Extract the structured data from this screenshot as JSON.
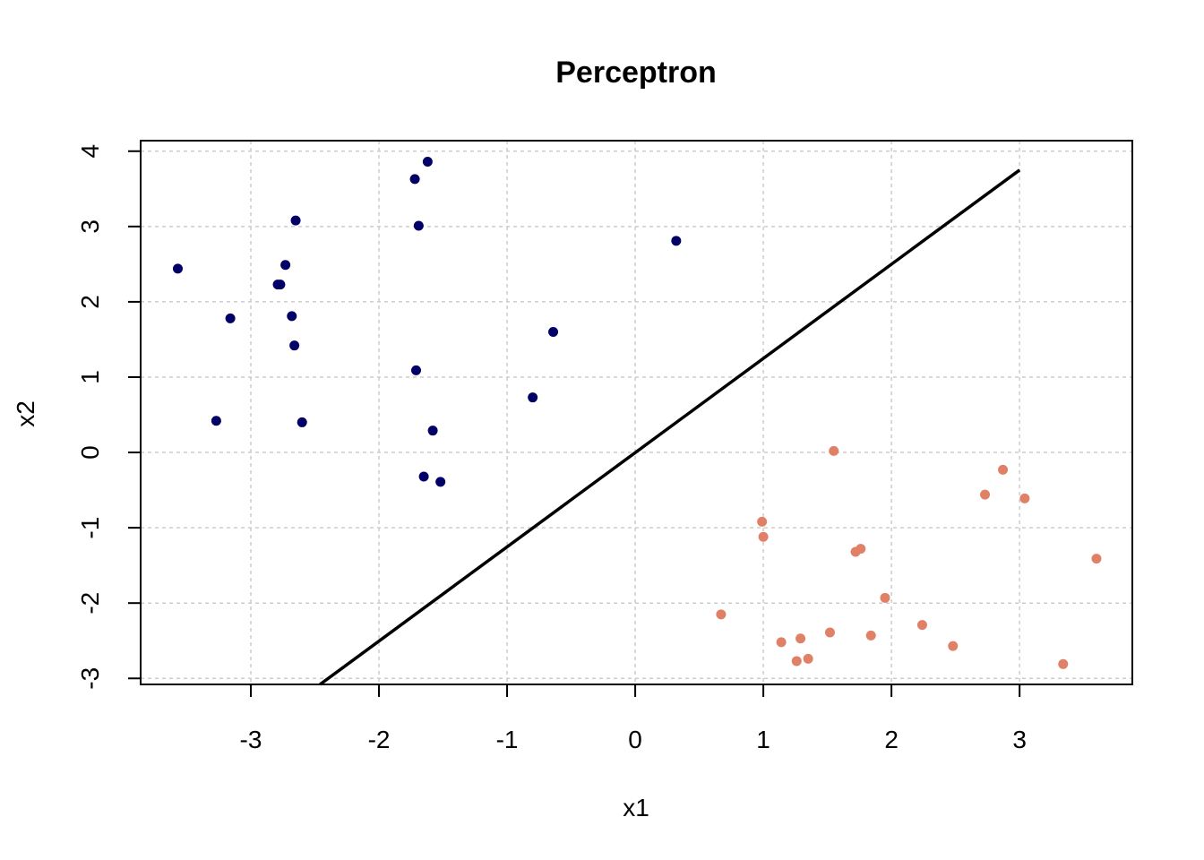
{
  "chart_data": {
    "type": "scatter",
    "title": "Perceptron",
    "xlabel": "x1",
    "ylabel": "x2",
    "xlim": [
      -3.86,
      3.88
    ],
    "ylim": [
      -3.08,
      4.14
    ],
    "xticks": [
      -3,
      -2,
      -1,
      0,
      1,
      2,
      3
    ],
    "yticks": [
      -3,
      -2,
      -1,
      0,
      1,
      2,
      3,
      4
    ],
    "xtick_labels": [
      "-3",
      "-2",
      "-1",
      "0",
      "1",
      "2",
      "3"
    ],
    "ytick_labels": [
      "-3",
      "-2",
      "-1",
      "0",
      "1",
      "2",
      "3",
      "4"
    ],
    "grid": true,
    "series": [
      {
        "color": "#000066",
        "points": [
          [
            -3.57,
            2.44
          ],
          [
            -3.27,
            0.42
          ],
          [
            -3.16,
            1.78
          ],
          [
            -2.79,
            2.23
          ],
          [
            -2.77,
            2.23
          ],
          [
            -2.73,
            2.49
          ],
          [
            -2.68,
            1.81
          ],
          [
            -2.66,
            1.42
          ],
          [
            -2.65,
            3.08
          ],
          [
            -2.6,
            0.4
          ],
          [
            -1.72,
            3.63
          ],
          [
            -1.71,
            1.09
          ],
          [
            -1.69,
            3.01
          ],
          [
            -1.65,
            -0.32
          ],
          [
            -1.62,
            3.86
          ],
          [
            -1.58,
            0.29
          ],
          [
            -1.52,
            -0.39
          ],
          [
            -0.8,
            0.73
          ],
          [
            -0.64,
            1.6
          ],
          [
            0.32,
            2.81
          ]
        ]
      },
      {
        "color": "#E08066",
        "points": [
          [
            0.67,
            -2.15
          ],
          [
            0.99,
            -0.92
          ],
          [
            1.0,
            -1.12
          ],
          [
            1.14,
            -2.52
          ],
          [
            1.26,
            -2.77
          ],
          [
            1.29,
            -2.47
          ],
          [
            1.35,
            -2.74
          ],
          [
            1.52,
            -2.39
          ],
          [
            1.55,
            0.02
          ],
          [
            1.72,
            -1.32
          ],
          [
            1.76,
            -1.28
          ],
          [
            1.84,
            -2.43
          ],
          [
            1.95,
            -1.93
          ],
          [
            2.24,
            -2.29
          ],
          [
            2.48,
            -2.57
          ],
          [
            2.73,
            -0.56
          ],
          [
            2.87,
            -0.23
          ],
          [
            3.04,
            -0.61
          ],
          [
            3.34,
            -2.81
          ],
          [
            3.6,
            -1.41
          ]
        ]
      }
    ],
    "line": {
      "color": "#000000",
      "points": [
        [
          -2.46,
          -3.08
        ],
        [
          3.0,
          3.75
        ]
      ]
    }
  }
}
